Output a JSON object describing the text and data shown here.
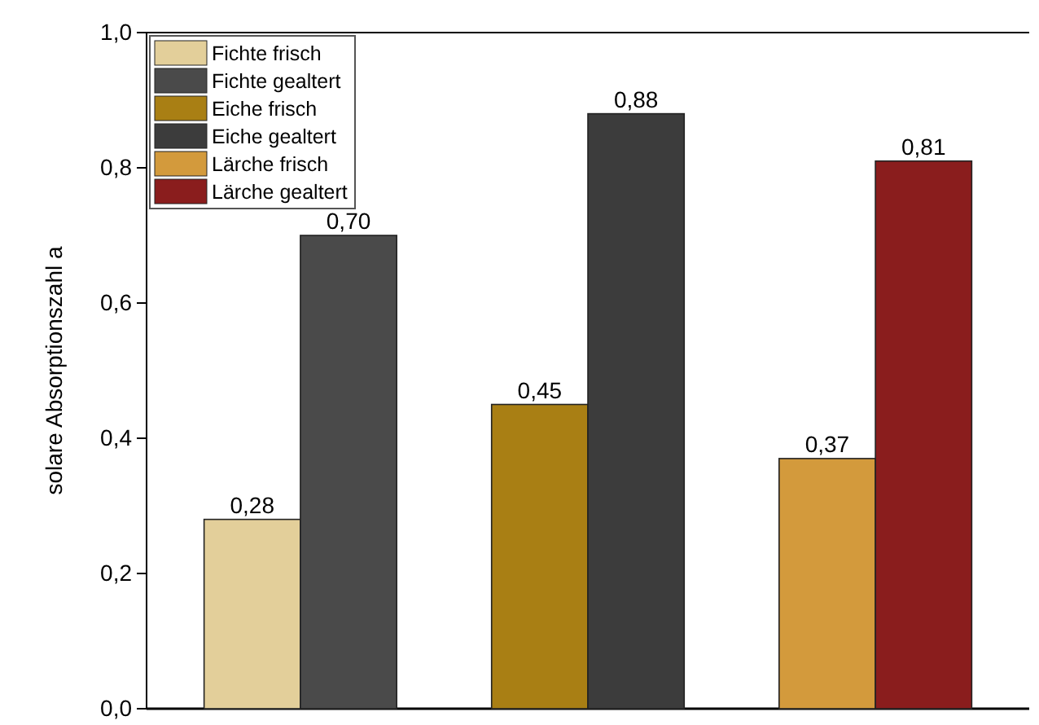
{
  "chart_data": {
    "type": "bar",
    "ylabel": "solare Absorptionszahl a",
    "categories": [
      null,
      null,
      null
    ],
    "series": [
      {
        "name": "Fichte frisch",
        "color": "#e3cf9a",
        "values": [
          0.28,
          null,
          null
        ],
        "value_labels": [
          "0,28",
          null,
          null
        ]
      },
      {
        "name": "Fichte gealtert",
        "color": "#4a4a4a",
        "values": [
          0.7,
          null,
          null
        ],
        "value_labels": [
          "0,70",
          null,
          null
        ]
      },
      {
        "name": "Eiche frisch",
        "color": "#a97f14",
        "values": [
          null,
          0.45,
          null
        ],
        "value_labels": [
          null,
          "0,45",
          null
        ]
      },
      {
        "name": "Eiche gealtert",
        "color": "#3c3c3c",
        "values": [
          null,
          0.88,
          null
        ],
        "value_labels": [
          null,
          "0,88",
          null
        ]
      },
      {
        "name": "Lärche frisch",
        "color": "#d39a3c",
        "values": [
          null,
          null,
          0.37
        ],
        "value_labels": [
          null,
          null,
          "0,37"
        ]
      },
      {
        "name": "Lärche gealtert",
        "color": "#8a1d1d",
        "values": [
          null,
          null,
          0.81
        ],
        "value_labels": [
          null,
          null,
          "0,81"
        ]
      }
    ],
    "ylim": [
      0,
      1
    ],
    "yticks": [
      {
        "value": 0,
        "label": "0,0"
      },
      {
        "value": 0.2,
        "label": "0,2"
      },
      {
        "value": 0.4,
        "label": "0,4"
      },
      {
        "value": 0.6,
        "label": "0,6"
      },
      {
        "value": 0.8,
        "label": "0,8"
      },
      {
        "value": 1,
        "label": "1,0"
      }
    ],
    "legend": "top left",
    "grid": false
  }
}
